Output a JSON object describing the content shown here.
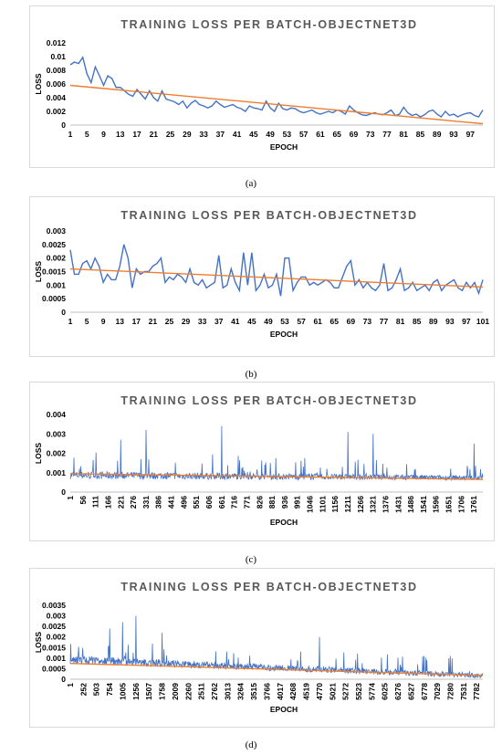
{
  "chart_data": [
    {
      "type": "line",
      "title": "TRAINING LOSS PER BATCH-OBJECTNET3D",
      "xlabel": "EPOCH",
      "ylabel": "LOSS",
      "caption": "(a)",
      "ylim": [
        0,
        0.012
      ],
      "yticks": [
        "0",
        "0.002",
        "0.004",
        "0.006",
        "0.008",
        "0.01",
        "0.012"
      ],
      "xticks": [
        "1",
        "5",
        "9",
        "13",
        "17",
        "21",
        "25",
        "29",
        "33",
        "37",
        "41",
        "45",
        "49",
        "53",
        "57",
        "61",
        "65",
        "69",
        "73",
        "77",
        "81",
        "85",
        "89",
        "93",
        "97"
      ],
      "x_count": 100,
      "trend": [
        0.0058,
        0.0002
      ],
      "series": [
        {
          "values": [
            0.0088,
            0.0092,
            0.009,
            0.0099,
            0.0075,
            0.0062,
            0.0085,
            0.0072,
            0.0058,
            0.0072,
            0.0068,
            0.0055,
            0.0055,
            0.005,
            0.0045,
            0.0042,
            0.0052,
            0.0045,
            0.0038,
            0.005,
            0.004,
            0.0035,
            0.005,
            0.0038,
            0.0036,
            0.0034,
            0.003,
            0.0035,
            0.0025,
            0.0032,
            0.0036,
            0.003,
            0.0028,
            0.0025,
            0.0028,
            0.0035,
            0.003,
            0.0026,
            0.0028,
            0.003,
            0.0026,
            0.0024,
            0.002,
            0.0028,
            0.0025,
            0.0024,
            0.0022,
            0.0035,
            0.0025,
            0.002,
            0.0032,
            0.0024,
            0.0022,
            0.0025,
            0.0024,
            0.002,
            0.0018,
            0.002,
            0.0022,
            0.0018,
            0.0016,
            0.0018,
            0.002,
            0.0018,
            0.0022,
            0.002,
            0.0016,
            0.0028,
            0.0022,
            0.0018,
            0.0015,
            0.0014,
            0.0016,
            0.0018,
            0.0016,
            0.0015,
            0.0018,
            0.0022,
            0.0014,
            0.0016,
            0.0026,
            0.0018,
            0.0014,
            0.0016,
            0.0012,
            0.0015,
            0.002,
            0.0022,
            0.0016,
            0.0012,
            0.002,
            0.0014,
            0.0016,
            0.0012,
            0.0015,
            0.0017,
            0.0018,
            0.0014,
            0.0012,
            0.0022
          ],
          "color": "#4472c4"
        }
      ],
      "trend_color": "#ed7d31"
    },
    {
      "type": "line",
      "title": "TRAINING LOSS PER BATCH-OBJECTNET3D",
      "xlabel": "EPOCH",
      "ylabel": "LOSS",
      "caption": "(b)",
      "ylim": [
        0,
        0.003
      ],
      "yticks": [
        "0",
        "0.0005",
        "0.001",
        "0.0015",
        "0.002",
        "0.0025",
        "0.003"
      ],
      "xticks": [
        "1",
        "5",
        "9",
        "13",
        "17",
        "21",
        "25",
        "29",
        "33",
        "37",
        "41",
        "45",
        "49",
        "53",
        "57",
        "61",
        "65",
        "69",
        "73",
        "77",
        "81",
        "85",
        "89",
        "93",
        "97",
        "101"
      ],
      "x_count": 101,
      "trend": [
        0.0016,
        0.00093
      ],
      "series": [
        {
          "values": [
            0.0023,
            0.0014,
            0.0014,
            0.0018,
            0.0019,
            0.0016,
            0.002,
            0.0017,
            0.0011,
            0.0014,
            0.0012,
            0.0012,
            0.0017,
            0.0025,
            0.002,
            0.0009,
            0.0016,
            0.0014,
            0.0015,
            0.0015,
            0.0017,
            0.0018,
            0.002,
            0.0011,
            0.0013,
            0.0012,
            0.0014,
            0.0013,
            0.0011,
            0.0016,
            0.0011,
            0.001,
            0.0012,
            0.0009,
            0.001,
            0.0011,
            0.0021,
            0.0009,
            0.001,
            0.0016,
            0.0011,
            0.0008,
            0.0022,
            0.001,
            0.0022,
            0.0008,
            0.001,
            0.0014,
            0.0009,
            0.001,
            0.0014,
            0.0006,
            0.002,
            0.002,
            0.0008,
            0.0011,
            0.0013,
            0.0013,
            0.001,
            0.0011,
            0.001,
            0.0011,
            0.0012,
            0.0011,
            0.0009,
            0.0009,
            0.0013,
            0.0017,
            0.0019,
            0.001,
            0.0012,
            0.0009,
            0.0011,
            0.0009,
            0.0008,
            0.001,
            0.0018,
            0.0008,
            0.0009,
            0.0012,
            0.0016,
            0.0008,
            0.0009,
            0.0011,
            0.0008,
            0.0009,
            0.001,
            0.0008,
            0.0011,
            0.0012,
            0.0008,
            0.001,
            0.0011,
            0.0012,
            0.0009,
            0.0008,
            0.0011,
            0.0009,
            0.0011,
            0.0007,
            0.0012
          ],
          "color": "#4472c4"
        }
      ],
      "trend_color": "#ed7d31"
    },
    {
      "type": "line",
      "title": "TRAINING LOSS PER BATCH-OBJECTNET3D",
      "xlabel": "EPOCH",
      "ylabel": "LOSS",
      "caption": "(c)",
      "ylim": [
        0,
        0.004
      ],
      "yticks": [
        "0",
        "0.001",
        "0.002",
        "0.003",
        "0.004"
      ],
      "xticks": [
        "1",
        "56",
        "111",
        "166",
        "221",
        "276",
        "331",
        "386",
        "441",
        "496",
        "551",
        "606",
        "661",
        "716",
        "771",
        "826",
        "881",
        "936",
        "991",
        "1046",
        "1101",
        "1156",
        "1211",
        "1266",
        "1321",
        "1376",
        "1431",
        "1486",
        "1541",
        "1596",
        "1651",
        "1706",
        "1761"
      ],
      "x_count": 1800,
      "dense": {
        "base": 0.00085,
        "base_end": 0.00072,
        "noise": 0.0004,
        "spike_rate": 0.06,
        "spike_max": 0.0022,
        "seed": 7,
        "peaks": [
          [
            331,
            0.0032
          ],
          [
            661,
            0.0034
          ],
          [
            1211,
            0.0031
          ],
          [
            1321,
            0.003
          ],
          [
            1761,
            0.0025
          ],
          [
            221,
            0.0027
          ]
        ]
      },
      "trend": [
        0.00095,
        0.00065
      ],
      "series": [
        {
          "color": "#4472c4"
        }
      ],
      "trend_color": "#ed7d31"
    },
    {
      "type": "line",
      "title": "TRAINING LOSS PER BATCH-OBJECTNET3D",
      "xlabel": "EPOCH",
      "ylabel": "LOSS",
      "caption": "(d)",
      "ylim": [
        0,
        0.0035
      ],
      "yticks": [
        "0",
        "0.0005",
        "0.001",
        "0.0015",
        "0.002",
        "0.0025",
        "0.003",
        "0.0035"
      ],
      "xticks": [
        "1",
        "252",
        "503",
        "754",
        "1005",
        "1256",
        "1507",
        "1758",
        "2009",
        "2260",
        "2511",
        "2762",
        "3013",
        "3264",
        "3515",
        "3766",
        "4017",
        "4268",
        "4519",
        "4770",
        "5021",
        "5272",
        "5523",
        "5774",
        "6025",
        "6276",
        "6527",
        "6778",
        "7029",
        "7280",
        "7531",
        "7782"
      ],
      "x_count": 7900,
      "dense": {
        "base": 0.0009,
        "base_end": 0.00015,
        "noise": 0.0004,
        "spike_rate": 0.05,
        "spike_max": 0.0018,
        "seed": 11,
        "peaks": [
          [
            1256,
            0.003
          ],
          [
            1005,
            0.0027
          ],
          [
            754,
            0.0024
          ],
          [
            1758,
            0.0022
          ],
          [
            4770,
            0.002
          ],
          [
            6778,
            0.0011
          ],
          [
            7280,
            0.0011
          ]
        ]
      },
      "trend": [
        0.00075,
        0.00018
      ],
      "series": [
        {
          "color": "#4472c4"
        }
      ],
      "trend_color": "#ed7d31"
    }
  ]
}
